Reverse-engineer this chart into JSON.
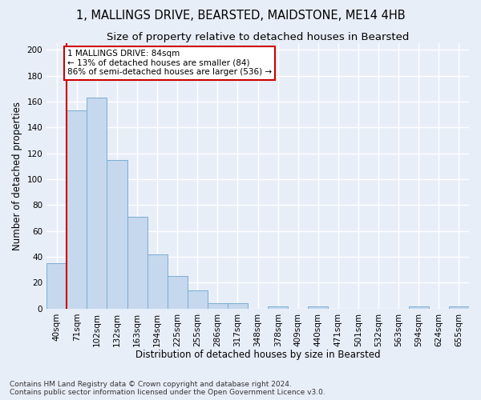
{
  "title": "1, MALLINGS DRIVE, BEARSTED, MAIDSTONE, ME14 4HB",
  "subtitle": "Size of property relative to detached houses in Bearsted",
  "xlabel": "Distribution of detached houses by size in Bearsted",
  "ylabel": "Number of detached properties",
  "bar_color": "#c5d8ed",
  "bar_edge_color": "#7aadd4",
  "categories": [
    "40sqm",
    "71sqm",
    "102sqm",
    "132sqm",
    "163sqm",
    "194sqm",
    "225sqm",
    "255sqm",
    "286sqm",
    "317sqm",
    "348sqm",
    "378sqm",
    "409sqm",
    "440sqm",
    "471sqm",
    "501sqm",
    "532sqm",
    "563sqm",
    "594sqm",
    "624sqm",
    "655sqm"
  ],
  "values": [
    35,
    153,
    163,
    115,
    71,
    42,
    25,
    14,
    4,
    4,
    0,
    2,
    0,
    2,
    0,
    0,
    0,
    0,
    2,
    0,
    2
  ],
  "vline_color": "#cc0000",
  "vline_x_index": 1,
  "annotation_text": "1 MALLINGS DRIVE: 84sqm\n← 13% of detached houses are smaller (84)\n86% of semi-detached houses are larger (536) →",
  "annotation_box_color": "white",
  "annotation_box_edge": "#cc0000",
  "ylim": [
    0,
    205
  ],
  "yticks": [
    0,
    20,
    40,
    60,
    80,
    100,
    120,
    140,
    160,
    180,
    200
  ],
  "footer": "Contains HM Land Registry data © Crown copyright and database right 2024.\nContains public sector information licensed under the Open Government Licence v3.0.",
  "background_color": "#e8eef8",
  "grid_color": "#ffffff",
  "title_fontsize": 10.5,
  "subtitle_fontsize": 9.5,
  "axis_label_fontsize": 8.5,
  "tick_fontsize": 7.5,
  "ann_fontsize": 7.5,
  "footer_fontsize": 6.5
}
